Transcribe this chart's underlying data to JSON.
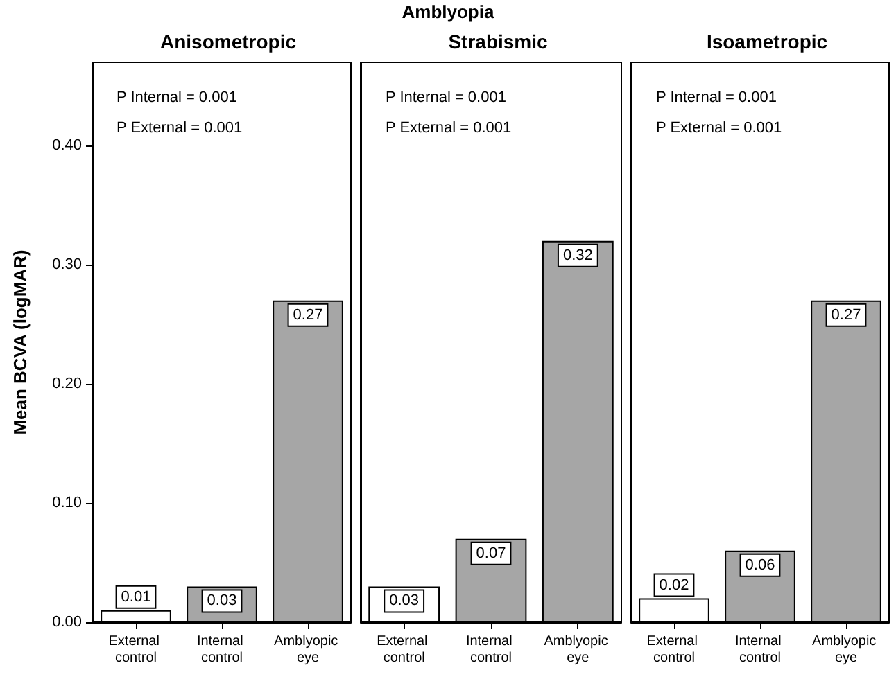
{
  "chart_data": [
    {
      "type": "bar",
      "title": "Anisometropic",
      "ylabel": "Mean BCVA (logMAR)",
      "categories": [
        "External control",
        "Internal control",
        "Amblyopic eye"
      ],
      "values": [
        0.01,
        0.03,
        0.27
      ],
      "colors": [
        "#ffffff",
        "#a6a6a6",
        "#a6a6a6"
      ],
      "data_labels": true,
      "ylim": [
        0,
        0.47
      ],
      "yticks": [
        {
          "value": 0,
          "label": "0.00"
        },
        {
          "value": 0.1,
          "label": "0.10"
        },
        {
          "value": 0.2,
          "label": "0.20"
        },
        {
          "value": 0.3,
          "label": "0.30"
        },
        {
          "value": 0.4,
          "label": "0.40"
        }
      ],
      "grid": false,
      "annotations": [
        "Amblyopia",
        "P Internal = 0.001",
        "P External = 0.001"
      ]
    },
    {
      "type": "bar",
      "title": "Strabismic",
      "categories": [
        "External control",
        "Internal control",
        "Amblyopic eye"
      ],
      "values": [
        0.03,
        0.07,
        0.32
      ],
      "colors": [
        "#ffffff",
        "#a6a6a6",
        "#a6a6a6"
      ],
      "data_labels": true,
      "ylim": [
        0,
        0.47
      ],
      "tick_labels": "x",
      "grid": false,
      "annotations": [
        "P Internal = 0.001",
        "P External = 0.001"
      ]
    },
    {
      "type": "bar",
      "title": "Isoametropic",
      "categories": [
        "External control",
        "Internal control",
        "Amblyopic eye"
      ],
      "values": [
        0.02,
        0.06,
        0.27
      ],
      "colors": [
        "#ffffff",
        "#a6a6a6",
        "#a6a6a6"
      ],
      "data_labels": true,
      "ylim": [
        0,
        0.47
      ],
      "tick_labels": "x",
      "grid": false,
      "annotations": [
        "P Internal = 0.001",
        "P External = 0.001"
      ]
    }
  ]
}
